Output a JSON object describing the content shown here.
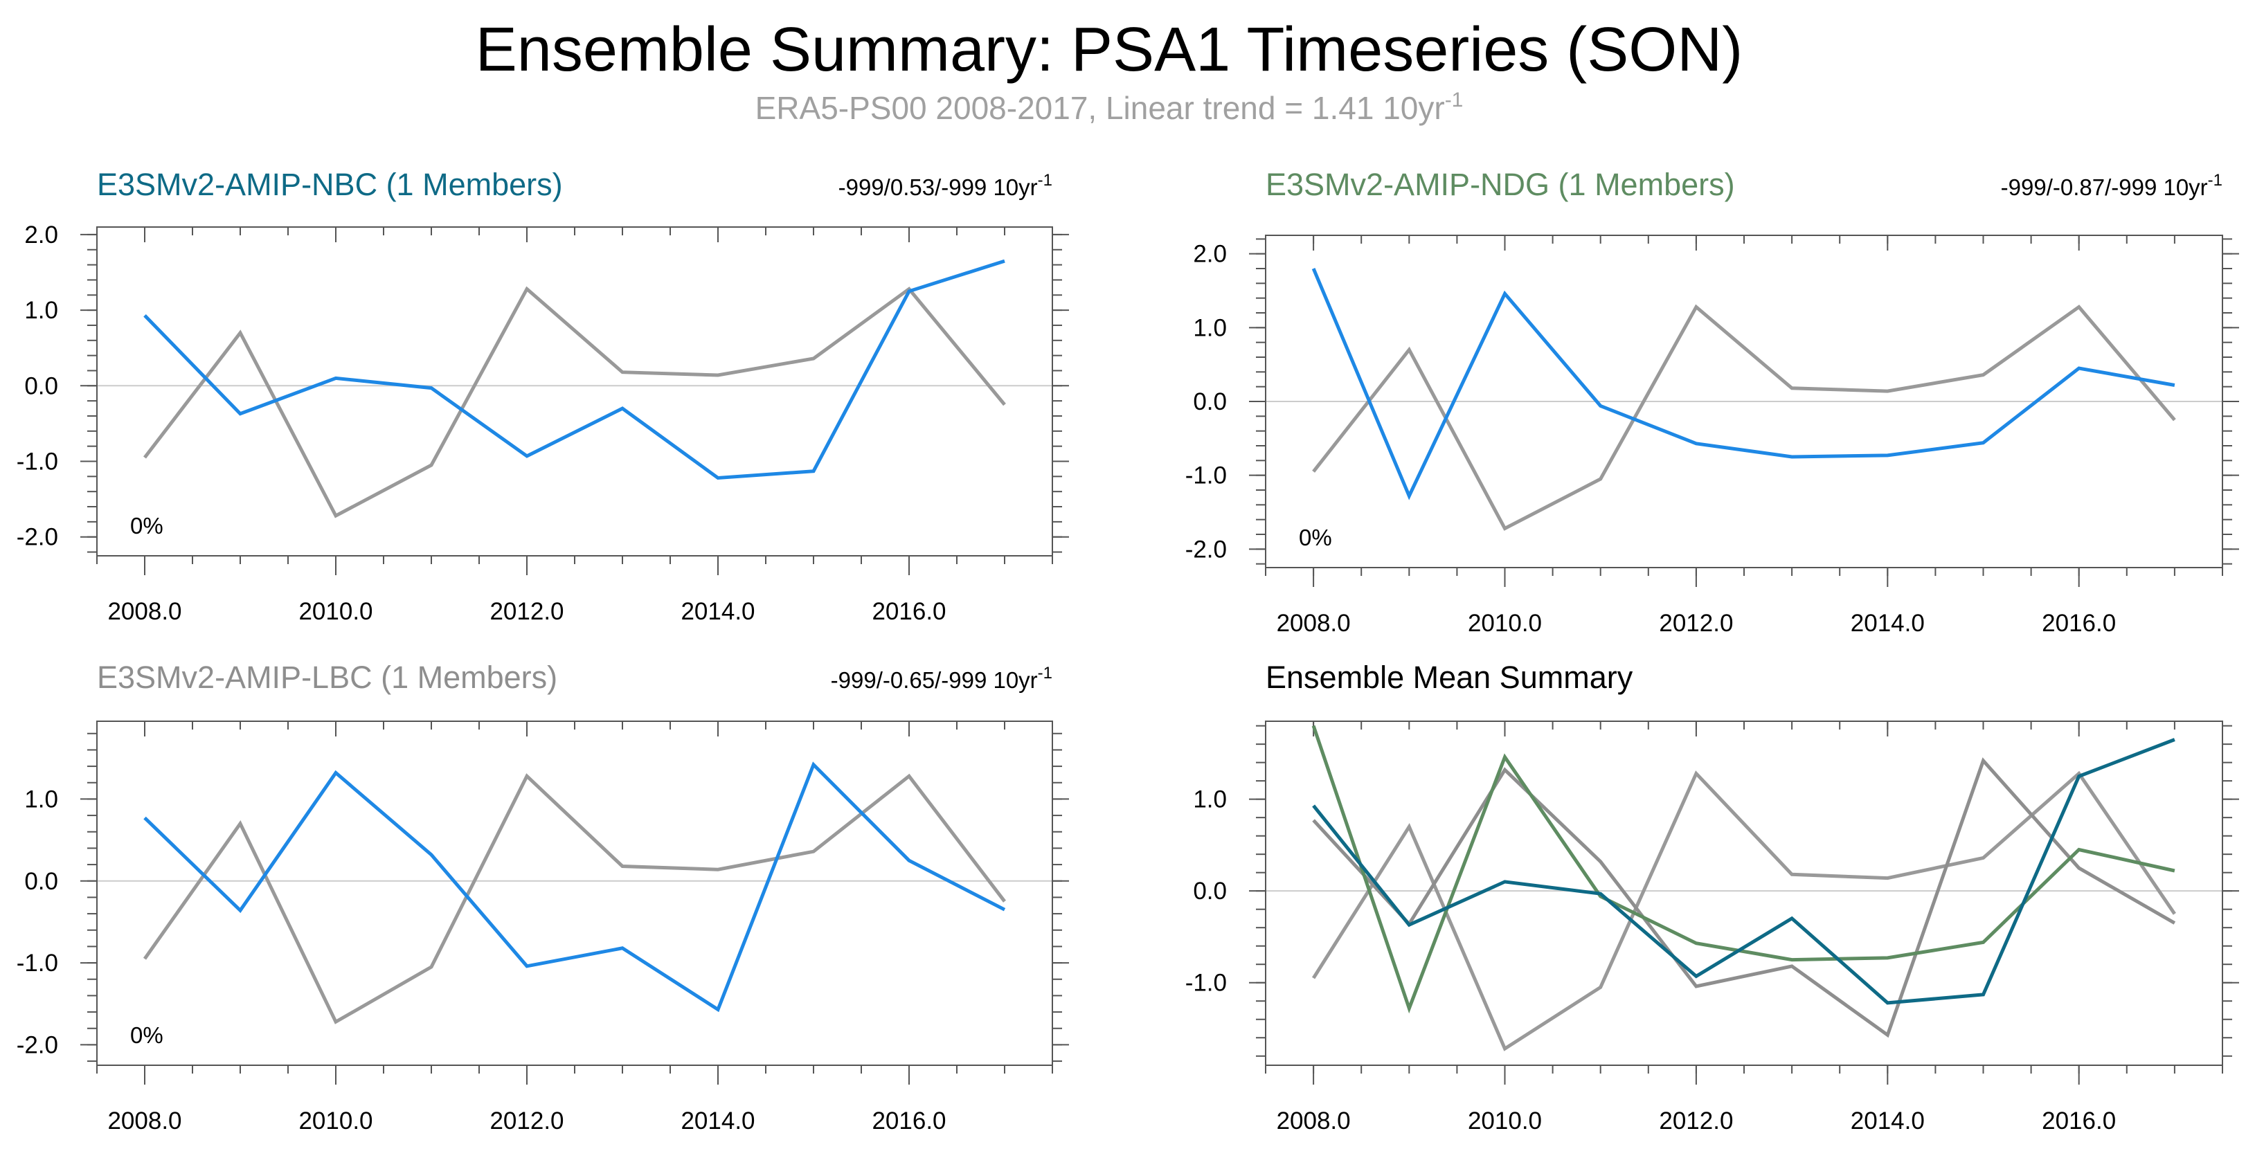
{
  "header": {
    "title": "Ensemble Summary: PSA1 Timeseries (SON)",
    "subtitle_main": "ERA5-PS00 2008-2017, Linear trend = 1.41 10yr",
    "subtitle_sup": "-1"
  },
  "colors": {
    "obs": "#999999",
    "member": "#1e88e5",
    "nbc": "#0e6a86",
    "ndg": "#5e8c61",
    "lbc": "#8e8e8e",
    "mean_title": "#000000",
    "zero_line": "#cccccc",
    "frame": "#555555"
  },
  "chart_data": [
    {
      "type": "line",
      "panel": "top-left",
      "title": "E3SMv2-AMIP-NBC (1 Members)",
      "title_color_key": "nbc",
      "trend_text": "-999/0.53/-999 10yr",
      "trend_sup": "-1",
      "pct_label": "0%",
      "x": [
        2008,
        2009,
        2010,
        2011,
        2012,
        2013,
        2014,
        2015,
        2016,
        2017
      ],
      "xlim": [
        2007.5,
        2017.5
      ],
      "ylim": [
        -2.25,
        2.1
      ],
      "xticks": [
        2008,
        2010,
        2012,
        2014,
        2016
      ],
      "xtick_labels": [
        "2008.0",
        "2010.0",
        "2012.0",
        "2014.0",
        "2016.0"
      ],
      "yticks": [
        2.0,
        1.0,
        0.0,
        -1.0,
        -2.0
      ],
      "ytick_labels": [
        "2.0",
        "1.0",
        "0.0",
        "-1.0",
        "-2.0"
      ],
      "series": [
        {
          "name": "ERA5-PS00",
          "color_key": "obs",
          "values": [
            -0.95,
            0.7,
            -1.72,
            -1.05,
            1.28,
            0.18,
            0.14,
            0.36,
            1.28,
            -0.25
          ]
        },
        {
          "name": "E3SMv2-AMIP-NBC",
          "color_key": "member",
          "values": [
            0.93,
            -0.37,
            0.1,
            -0.03,
            -0.93,
            -0.3,
            -1.22,
            -1.13,
            1.25,
            1.65
          ]
        }
      ]
    },
    {
      "type": "line",
      "panel": "top-right",
      "title": "E3SMv2-AMIP-NDG (1 Members)",
      "title_color_key": "ndg",
      "trend_text": "-999/-0.87/-999 10yr",
      "trend_sup": "-1",
      "pct_label": "0%",
      "x": [
        2008,
        2009,
        2010,
        2011,
        2012,
        2013,
        2014,
        2015,
        2016,
        2017
      ],
      "xlim": [
        2007.5,
        2017.5
      ],
      "ylim": [
        -2.25,
        2.25
      ],
      "xticks": [
        2008,
        2010,
        2012,
        2014,
        2016
      ],
      "xtick_labels": [
        "2008.0",
        "2010.0",
        "2012.0",
        "2014.0",
        "2016.0"
      ],
      "yticks": [
        2.0,
        1.0,
        0.0,
        -1.0,
        -2.0
      ],
      "ytick_labels": [
        "2.0",
        "1.0",
        "0.0",
        "-1.0",
        "-2.0"
      ],
      "series": [
        {
          "name": "ERA5-PS00",
          "color_key": "obs",
          "values": [
            -0.95,
            0.7,
            -1.72,
            -1.05,
            1.28,
            0.18,
            0.14,
            0.36,
            1.28,
            -0.25
          ]
        },
        {
          "name": "E3SMv2-AMIP-NDG",
          "color_key": "member",
          "values": [
            1.8,
            -1.28,
            1.46,
            -0.06,
            -0.57,
            -0.75,
            -0.73,
            -0.56,
            0.45,
            0.22
          ]
        }
      ]
    },
    {
      "type": "line",
      "panel": "bottom-left",
      "title": "E3SMv2-AMIP-LBC (1 Members)",
      "title_color_key": "lbc",
      "trend_text": "-999/-0.65/-999 10yr",
      "trend_sup": "-1",
      "pct_label": "0%",
      "x": [
        2008,
        2009,
        2010,
        2011,
        2012,
        2013,
        2014,
        2015,
        2016,
        2017
      ],
      "xlim": [
        2007.5,
        2017.5
      ],
      "ylim": [
        -2.25,
        1.95
      ],
      "xticks": [
        2008,
        2010,
        2012,
        2014,
        2016
      ],
      "xtick_labels": [
        "2008.0",
        "2010.0",
        "2012.0",
        "2014.0",
        "2016.0"
      ],
      "yticks": [
        1.0,
        0.0,
        -1.0,
        -2.0
      ],
      "ytick_labels": [
        "1.0",
        "0.0",
        "-1.0",
        "-2.0"
      ],
      "series": [
        {
          "name": "ERA5-PS00",
          "color_key": "obs",
          "values": [
            -0.95,
            0.7,
            -1.72,
            -1.05,
            1.28,
            0.18,
            0.14,
            0.36,
            1.28,
            -0.25
          ]
        },
        {
          "name": "E3SMv2-AMIP-LBC",
          "color_key": "member",
          "values": [
            0.77,
            -0.36,
            1.32,
            0.32,
            -1.04,
            -0.82,
            -1.57,
            1.42,
            0.25,
            -0.35
          ]
        }
      ]
    },
    {
      "type": "line",
      "panel": "bottom-right",
      "title": "Ensemble Mean Summary",
      "title_color_key": "mean_title",
      "trend_text": "",
      "trend_sup": "",
      "pct_label": "",
      "x": [
        2008,
        2009,
        2010,
        2011,
        2012,
        2013,
        2014,
        2015,
        2016,
        2017
      ],
      "xlim": [
        2007.5,
        2017.5
      ],
      "ylim": [
        -1.9,
        1.85
      ],
      "xticks": [
        2008,
        2010,
        2012,
        2014,
        2016
      ],
      "xtick_labels": [
        "2008.0",
        "2010.0",
        "2012.0",
        "2014.0",
        "2016.0"
      ],
      "yticks": [
        1.0,
        0.0,
        -1.0
      ],
      "ytick_labels": [
        "1.0",
        "0.0",
        "-1.0"
      ],
      "series": [
        {
          "name": "ERA5-PS00",
          "color_key": "obs",
          "values": [
            -0.95,
            0.7,
            -1.72,
            -1.05,
            1.28,
            0.18,
            0.14,
            0.36,
            1.28,
            -0.25
          ]
        },
        {
          "name": "E3SMv2-AMIP-LBC",
          "color_key": "lbc",
          "values": [
            0.77,
            -0.36,
            1.32,
            0.32,
            -1.04,
            -0.82,
            -1.57,
            1.42,
            0.25,
            -0.35
          ]
        },
        {
          "name": "E3SMv2-AMIP-NDG",
          "color_key": "ndg",
          "values": [
            1.8,
            -1.28,
            1.46,
            -0.06,
            -0.57,
            -0.75,
            -0.73,
            -0.56,
            0.45,
            0.22
          ]
        },
        {
          "name": "E3SMv2-AMIP-NBC",
          "color_key": "nbc",
          "values": [
            0.93,
            -0.37,
            0.1,
            -0.03,
            -0.93,
            -0.3,
            -1.22,
            -1.13,
            1.25,
            1.65
          ]
        }
      ]
    }
  ]
}
